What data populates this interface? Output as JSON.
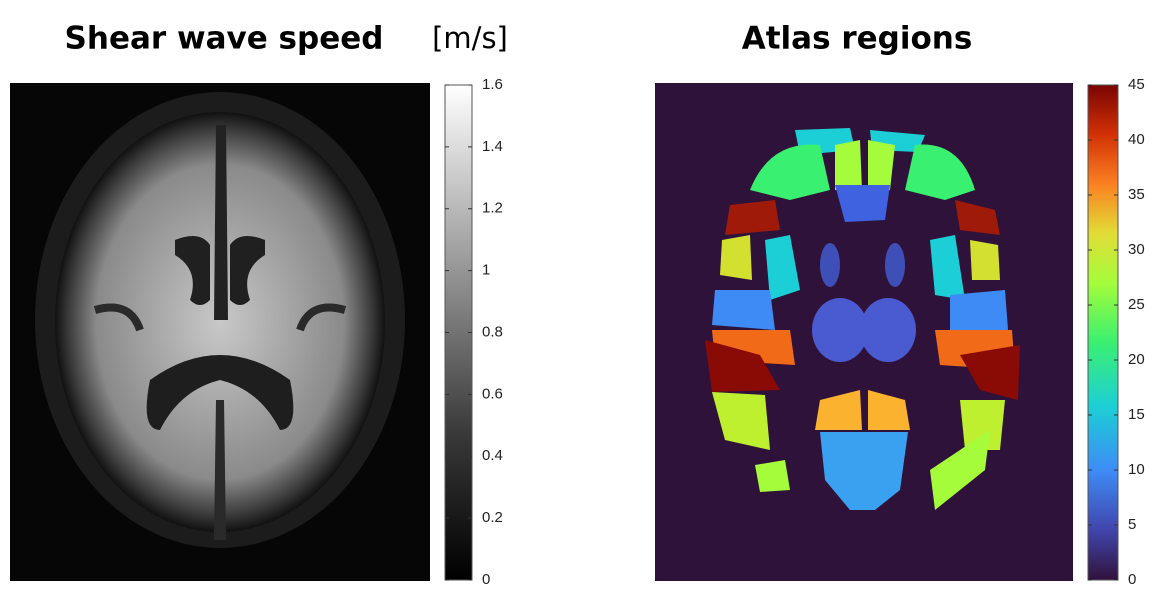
{
  "panels": [
    {
      "title": "Shear wave speed",
      "unit": "[m/s]",
      "colorbar": {
        "lim": [
          0,
          1.6
        ],
        "ticks": [
          0,
          0.2,
          0.4,
          0.6,
          0.8,
          1,
          1.2,
          1.4,
          1.6
        ]
      }
    },
    {
      "title": "Atlas regions",
      "colorbar": {
        "lim": [
          0,
          45
        ],
        "ticks": [
          0,
          5,
          10,
          15,
          20,
          25,
          30,
          35,
          40,
          45
        ]
      }
    }
  ]
}
